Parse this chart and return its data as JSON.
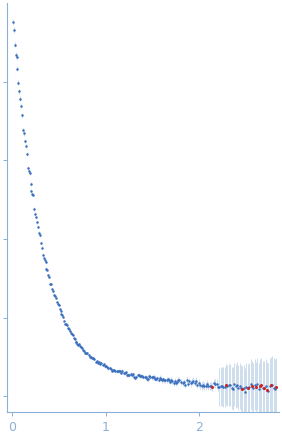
{
  "title": "",
  "xlabel": "",
  "ylabel": "",
  "xlim": [
    -0.05,
    2.85
  ],
  "dot_color_main": "#3a6fbd",
  "dot_color_outlier": "#cc2222",
  "error_bar_color": "#aac4e0",
  "axis_color": "#8ab0d8",
  "tick_color": "#8ab0d8",
  "bg_color": "#ffffff",
  "xticks": [
    0,
    1,
    2
  ],
  "xtick_labels": [
    "0",
    "1",
    "2"
  ]
}
